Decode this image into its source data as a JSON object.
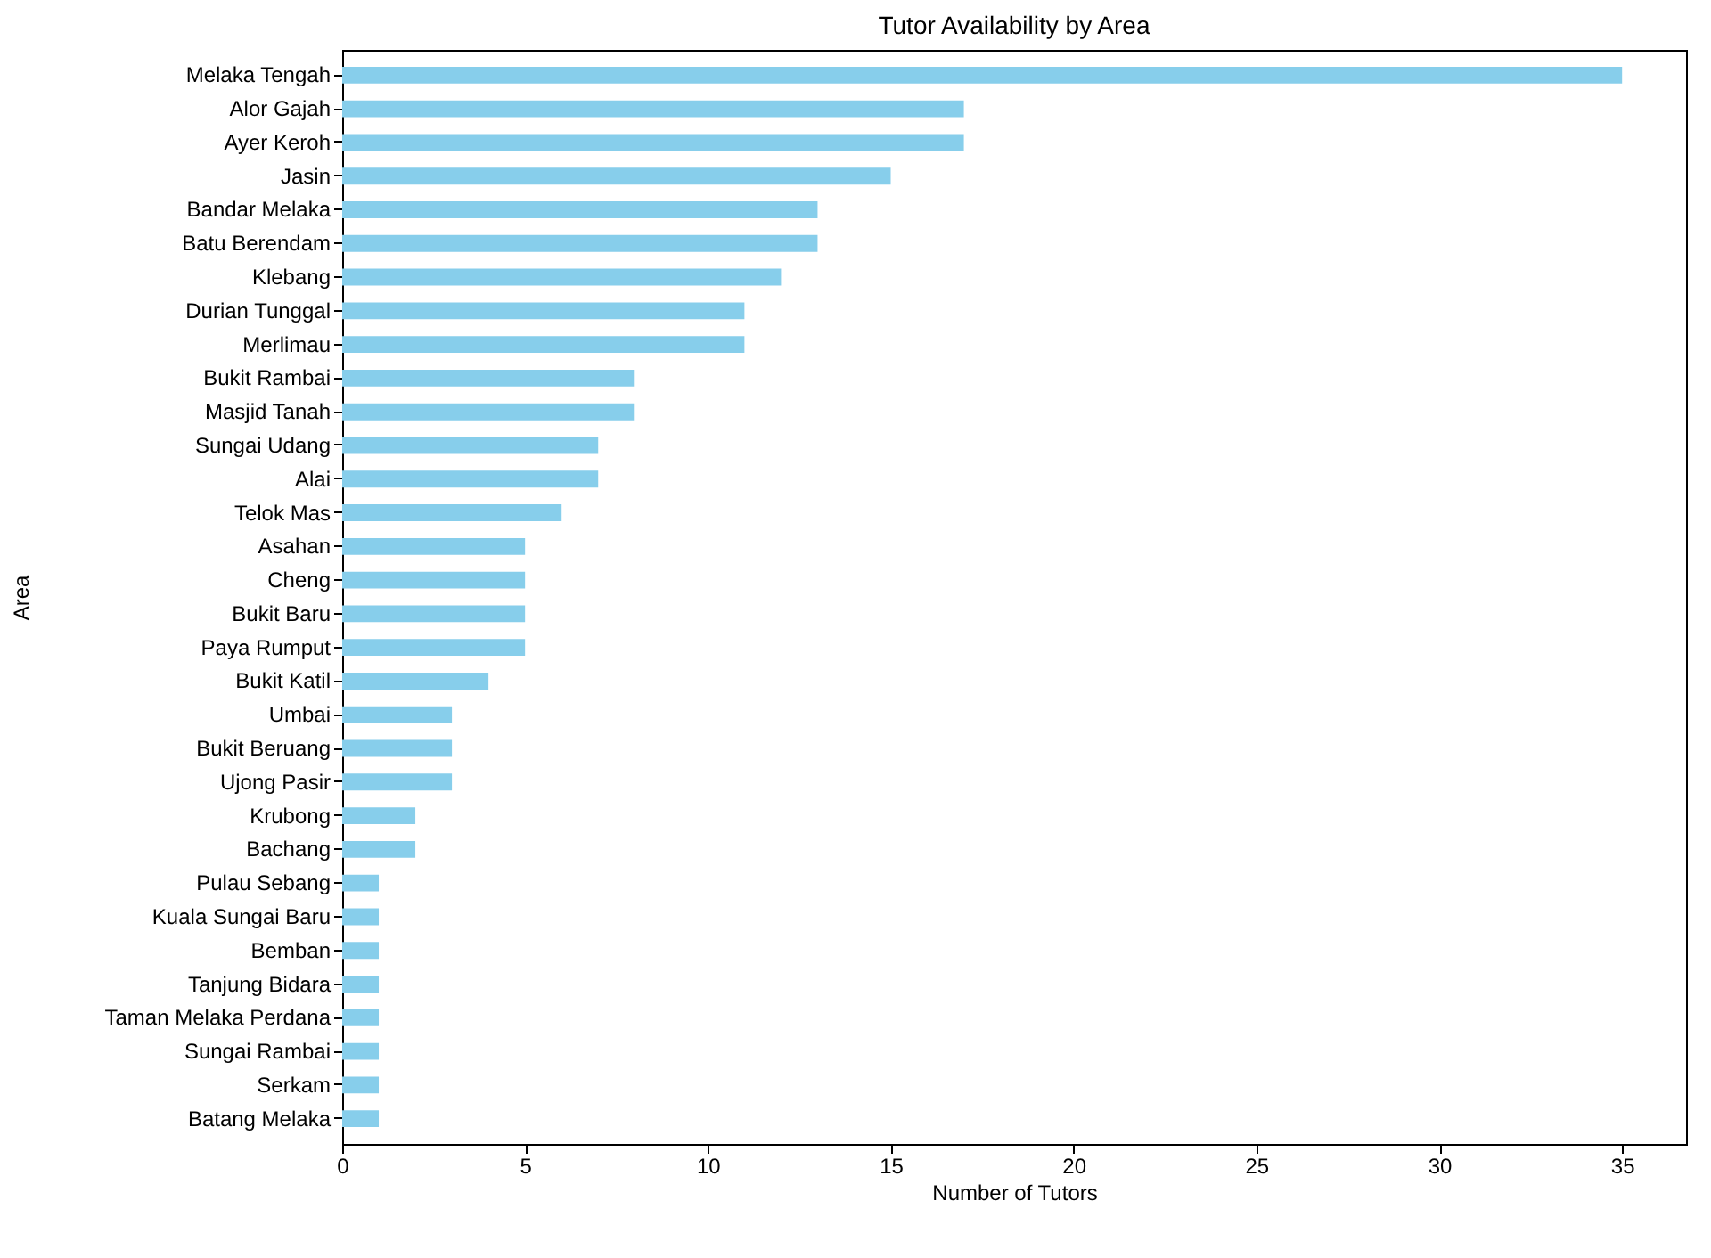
{
  "chart_data": {
    "type": "bar",
    "orientation": "horizontal",
    "title": "Tutor Availability by Area",
    "xlabel": "Number of Tutors",
    "ylabel": "Area",
    "categories": [
      "Melaka Tengah",
      "Alor Gajah",
      "Ayer Keroh",
      "Jasin",
      "Bandar Melaka",
      "Batu Berendam",
      "Klebang",
      "Durian Tunggal",
      "Merlimau",
      "Bukit Rambai",
      "Masjid Tanah",
      "Sungai Udang",
      "Alai",
      "Telok Mas",
      "Asahan",
      "Cheng",
      "Bukit Baru",
      "Paya Rumput",
      "Bukit Katil",
      "Umbai",
      "Bukit Beruang",
      "Ujong Pasir",
      "Krubong",
      "Bachang",
      "Pulau Sebang",
      "Kuala Sungai Baru",
      "Bemban",
      "Tanjung Bidara",
      "Taman Melaka Perdana",
      "Sungai Rambai",
      "Serkam",
      "Batang Melaka"
    ],
    "values": [
      35,
      17,
      17,
      15,
      13,
      13,
      12,
      11,
      11,
      8,
      8,
      7,
      7,
      6,
      5,
      5,
      5,
      5,
      4,
      3,
      3,
      3,
      2,
      2,
      1,
      1,
      1,
      1,
      1,
      1,
      1,
      1
    ],
    "color": "#87ceeb",
    "xlim": [
      0,
      36.75
    ],
    "xticks": [
      0,
      5,
      10,
      15,
      20,
      25,
      30,
      35
    ],
    "grid": false
  }
}
